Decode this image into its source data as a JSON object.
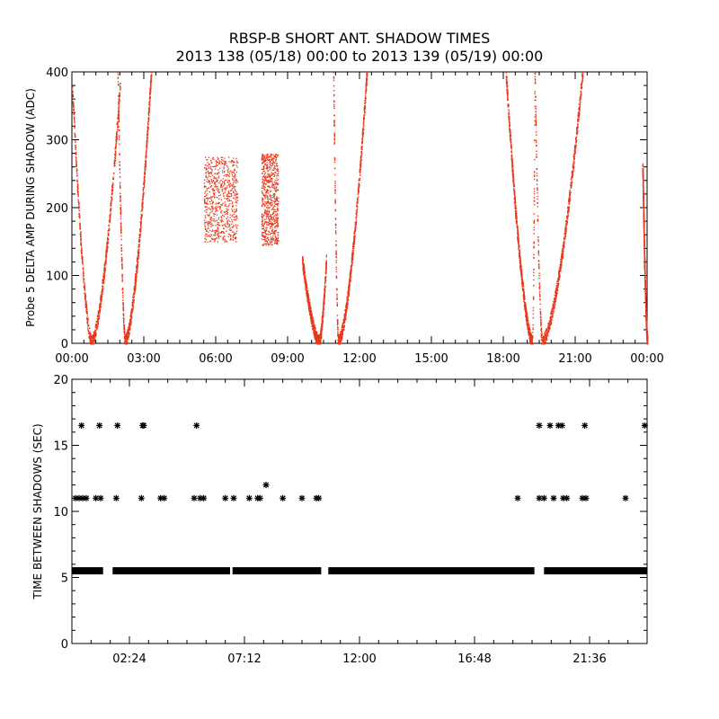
{
  "title_line1": "RBSP-B SHORT ANT. SHADOW TIMES",
  "title_line2": "2013 138 (05/18) 00:00 to 2013 139 (05/19) 00:00",
  "chart_data": [
    {
      "type": "scatter",
      "ylabel": "Probe 5 DELTA AMP DURING SHADOW (ADC)",
      "xlim_hours": [
        0,
        24
      ],
      "ylim": [
        0,
        400
      ],
      "x_ticks": [
        0,
        3,
        6,
        9,
        12,
        15,
        18,
        21,
        24
      ],
      "x_tick_labels": [
        "00:00",
        "03:00",
        "06:00",
        "09:00",
        "12:00",
        "15:00",
        "18:00",
        "21:00",
        "00:00"
      ],
      "y_ticks": [
        0,
        100,
        200,
        300,
        400
      ],
      "y_tick_labels": [
        "0",
        "100",
        "200",
        "300",
        "400"
      ],
      "marker_color": "#e8381c",
      "features": [
        {
          "kind": "arc",
          "x_start": 0.0,
          "x_min": 0.8,
          "x_end": 2.0,
          "y_top": 380
        },
        {
          "kind": "arc",
          "x_start": 1.9,
          "x_min": 2.2,
          "x_end": 3.3,
          "y_top": 400
        },
        {
          "kind": "block",
          "x_start": 5.5,
          "x_end": 6.9,
          "y_low": 150,
          "y_high": 275
        },
        {
          "kind": "block",
          "x_start": 7.9,
          "x_end": 8.6,
          "y_low": 145,
          "y_high": 280
        },
        {
          "kind": "arc",
          "x_start": 9.6,
          "x_min": 10.3,
          "x_end": 10.6,
          "y_top": 120
        },
        {
          "kind": "arc",
          "x_start": 10.9,
          "x_min": 11.1,
          "x_end": 12.3,
          "y_top": 400
        },
        {
          "kind": "arc",
          "x_start": 18.1,
          "x_min": 19.2,
          "x_end": 19.3,
          "y_top": 395
        },
        {
          "kind": "arc",
          "x_start": 19.3,
          "x_min": 19.6,
          "x_end": 21.3,
          "y_top": 400
        },
        {
          "kind": "arc",
          "x_start": 23.8,
          "x_min": 24.0,
          "x_end": 24.0,
          "y_top": 260
        }
      ]
    },
    {
      "type": "scatter",
      "ylabel": "TIME BETWEEN SHADOWS (SEC)",
      "xlim_hours": [
        0,
        24
      ],
      "ylim": [
        0,
        20
      ],
      "x_ticks": [
        2.4,
        7.2,
        12.0,
        16.8,
        21.6
      ],
      "x_tick_labels": [
        "02:24",
        "07:12",
        "12:00",
        "16:48",
        "21:36"
      ],
      "y_ticks": [
        0,
        5,
        10,
        15,
        20
      ],
      "y_tick_labels": [
        "0",
        "5",
        "10",
        "15",
        "20"
      ],
      "marker": "asterisk",
      "marker_color": "#000000",
      "baseline": {
        "y": 5.5,
        "segments": [
          [
            0.0,
            1.3
          ],
          [
            1.7,
            6.6
          ],
          [
            6.7,
            10.4
          ],
          [
            10.7,
            19.3
          ],
          [
            19.7,
            24.0
          ]
        ]
      },
      "points_y11": [
        0.15,
        0.3,
        0.45,
        0.6,
        1.0,
        1.2,
        1.85,
        2.9,
        3.7,
        3.85,
        5.1,
        5.35,
        5.5,
        6.4,
        6.75,
        7.4,
        7.75,
        7.85,
        8.8,
        9.6,
        10.2,
        10.3,
        18.6,
        19.5,
        19.7,
        20.1,
        20.5,
        20.65,
        21.3,
        21.45,
        23.1
      ],
      "points_y16_5": [
        0.4,
        1.15,
        1.9,
        2.95,
        3.0,
        5.2,
        19.5,
        19.95,
        20.3,
        20.45,
        21.4,
        23.9
      ],
      "points_y12": [
        8.1
      ]
    }
  ]
}
